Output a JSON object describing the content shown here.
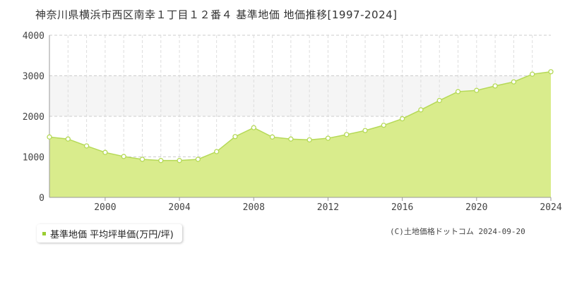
{
  "title": "神奈川県横浜市西区南幸１丁目１２番４ 基準地価 地価推移[1997-2024]",
  "legend": {
    "label": "基準地価 平均坪単価(万円/坪)",
    "color": "#9ACD32"
  },
  "copyright": "(C)土地価格ドットコム 2024-09-20",
  "colors": {
    "fill": "#D9EC8C",
    "line": "#B5D957",
    "marker_fill": "#ffffff",
    "band": "#F5F5F5",
    "grid": "#CCCCCC"
  },
  "chart_data": {
    "type": "area",
    "title": "神奈川県横浜市西区南幸１丁目１２番４ 基準地価 地価推移[1997-2024]",
    "xlabel": "",
    "ylabel": "",
    "xlim": [
      1997,
      2024
    ],
    "ylim": [
      0,
      4000
    ],
    "x_ticks": [
      2000,
      2004,
      2008,
      2012,
      2016,
      2020,
      2024
    ],
    "y_ticks": [
      0,
      1000,
      2000,
      3000,
      4000
    ],
    "grid": true,
    "legend_position": "bottom-left",
    "series": [
      {
        "name": "基準地価 平均坪単価(万円/坪)",
        "x": [
          1997,
          1998,
          1999,
          2000,
          2001,
          2002,
          2003,
          2004,
          2005,
          2006,
          2007,
          2008,
          2009,
          2010,
          2011,
          2012,
          2013,
          2014,
          2015,
          2016,
          2017,
          2018,
          2019,
          2020,
          2021,
          2022,
          2023,
          2024
        ],
        "values": [
          1490,
          1440,
          1270,
          1110,
          1010,
          940,
          910,
          910,
          940,
          1130,
          1500,
          1720,
          1490,
          1440,
          1420,
          1460,
          1550,
          1650,
          1780,
          1940,
          2160,
          2390,
          2610,
          2640,
          2750,
          2850,
          3040,
          3100
        ]
      }
    ]
  }
}
